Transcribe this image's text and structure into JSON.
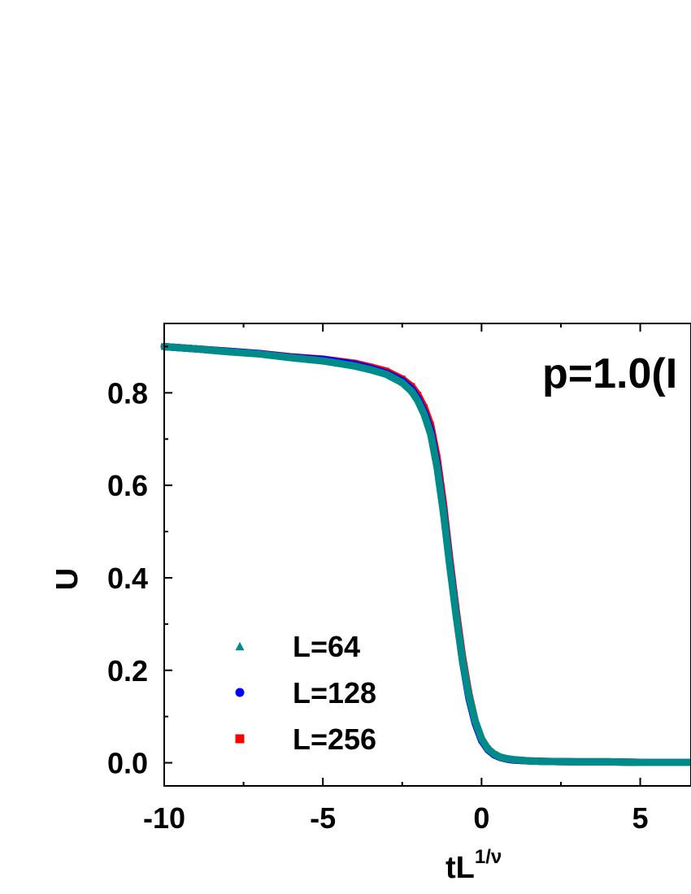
{
  "chart_data": {
    "type": "scatter",
    "title": "",
    "annotation": "p=1.0(I",
    "xlabel_main": "tL",
    "xlabel_sup": "1/ν",
    "ylabel": "U",
    "xlim": [
      -10,
      6.6
    ],
    "ylim": [
      -0.05,
      0.95
    ],
    "x_ticks": [
      -10,
      -5,
      0,
      5
    ],
    "x_tick_labels": [
      "-10",
      "-5",
      "0",
      "5"
    ],
    "y_ticks": [
      0.0,
      0.2,
      0.4,
      0.6,
      0.8
    ],
    "y_tick_labels": [
      "0.0",
      "0.2",
      "0.4",
      "0.6",
      "0.8"
    ],
    "grid": false,
    "legend_position": "bottom-left",
    "series": [
      {
        "name": "L=256",
        "marker": "square",
        "color": "#ff0000",
        "x": [
          -10,
          -9,
          -8,
          -7,
          -6,
          -5,
          -4,
          -3.5,
          -3,
          -2.5,
          -2.2,
          -2.0,
          -1.8,
          -1.6,
          -1.4,
          -1.2,
          -1.0,
          -0.8,
          -0.6,
          -0.4,
          -0.2,
          0,
          0.2,
          0.4,
          0.6,
          0.8,
          1.0,
          1.5,
          2,
          3,
          4,
          5,
          6,
          6.6
        ],
        "y": [
          0.9,
          0.895,
          0.89,
          0.885,
          0.878,
          0.873,
          0.864,
          0.856,
          0.847,
          0.83,
          0.814,
          0.795,
          0.768,
          0.73,
          0.66,
          0.56,
          0.44,
          0.33,
          0.23,
          0.15,
          0.09,
          0.05,
          0.03,
          0.018,
          0.012,
          0.008,
          0.006,
          0.004,
          0.003,
          0.002,
          0.002,
          0.001,
          0.001,
          0.001
        ]
      },
      {
        "name": "L=128",
        "marker": "circle",
        "color": "#0000ff",
        "x": [
          -10,
          -9,
          -8,
          -7,
          -6,
          -5,
          -4,
          -3.5,
          -3,
          -2.5,
          -2.2,
          -2.0,
          -1.8,
          -1.6,
          -1.4,
          -1.2,
          -1.0,
          -0.8,
          -0.6,
          -0.4,
          -0.2,
          0,
          0.2,
          0.4,
          0.6,
          0.8,
          1.0,
          1.5,
          2,
          3,
          4,
          5,
          6,
          6.6
        ],
        "y": [
          0.9,
          0.895,
          0.89,
          0.885,
          0.877,
          0.872,
          0.862,
          0.853,
          0.843,
          0.826,
          0.808,
          0.787,
          0.758,
          0.718,
          0.645,
          0.545,
          0.43,
          0.32,
          0.22,
          0.14,
          0.085,
          0.048,
          0.028,
          0.017,
          0.011,
          0.008,
          0.006,
          0.004,
          0.003,
          0.002,
          0.002,
          0.001,
          0.001,
          0.001
        ]
      },
      {
        "name": "L=64",
        "marker": "triangle",
        "color": "#008b8b",
        "x": [
          -10,
          -9,
          -8,
          -7,
          -6,
          -5,
          -4,
          -3.5,
          -3,
          -2.5,
          -2.2,
          -2.0,
          -1.8,
          -1.6,
          -1.4,
          -1.2,
          -1.0,
          -0.8,
          -0.6,
          -0.4,
          -0.2,
          0,
          0.2,
          0.4,
          0.6,
          0.8,
          1.0,
          1.5,
          2,
          3,
          4,
          5,
          6,
          6.6
        ],
        "y": [
          0.9,
          0.895,
          0.889,
          0.884,
          0.876,
          0.869,
          0.858,
          0.85,
          0.84,
          0.822,
          0.803,
          0.782,
          0.752,
          0.71,
          0.638,
          0.54,
          0.425,
          0.318,
          0.222,
          0.145,
          0.09,
          0.052,
          0.03,
          0.019,
          0.012,
          0.009,
          0.007,
          0.004,
          0.003,
          0.002,
          0.002,
          0.001,
          0.001,
          0.001
        ]
      }
    ],
    "legend_order": [
      "L=64",
      "L=128",
      "L=256"
    ]
  }
}
